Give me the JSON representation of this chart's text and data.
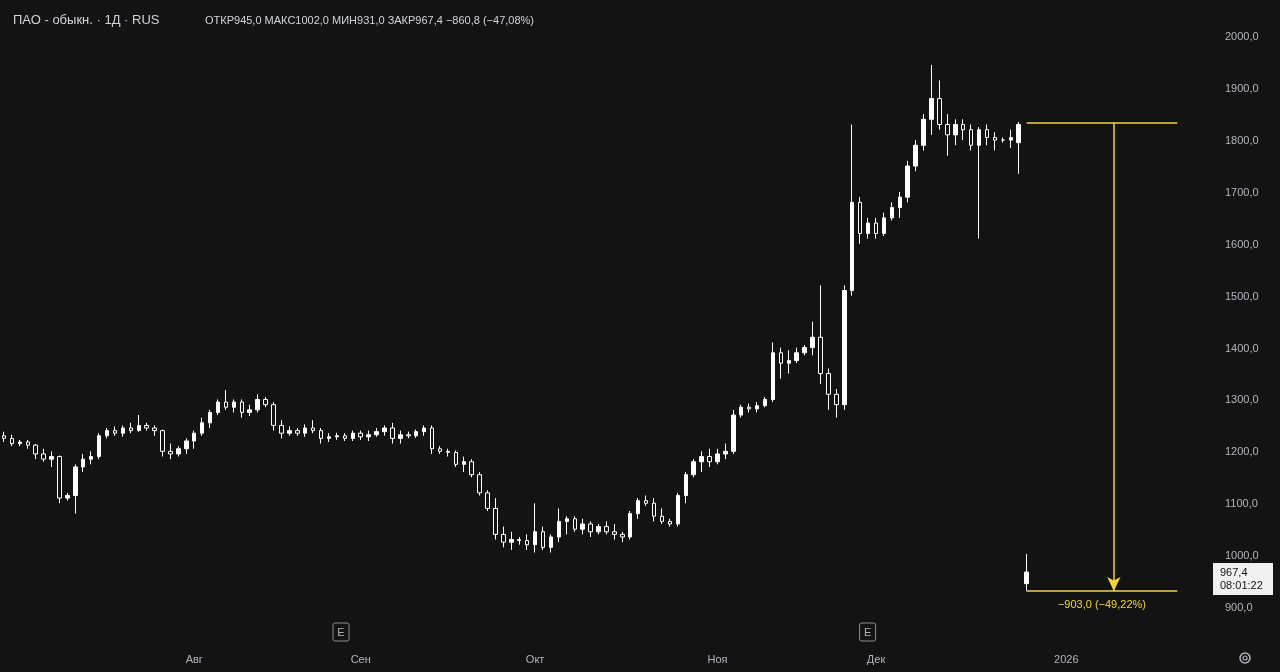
{
  "chart_data": {
    "type": "candlestick",
    "title": "ПАО - обыкн. · 1Д · RUS",
    "subtitle": "ОТКР945,0 МАКС1002,0 МИН931,0 ЗАКР967,4 −860,8 (−47,08%)",
    "color": "#ffffff",
    "categories": [
      null,
      null,
      null,
      null,
      null,
      null,
      null,
      null,
      null,
      null,
      null,
      null,
      null,
      null,
      null,
      null,
      null,
      null,
      null,
      null,
      null,
      null,
      null,
      null,
      "Авг",
      null,
      null,
      null,
      null,
      null,
      null,
      null,
      null,
      null,
      null,
      null,
      null,
      null,
      null,
      null,
      null,
      null,
      null,
      null,
      null,
      "Сен",
      null,
      null,
      null,
      null,
      null,
      null,
      null,
      null,
      null,
      null,
      null,
      null,
      null,
      null,
      null,
      null,
      null,
      null,
      null,
      null,
      null,
      "Окт",
      null,
      null,
      null,
      null,
      null,
      null,
      null,
      null,
      null,
      null,
      null,
      null,
      null,
      null,
      null,
      null,
      null,
      null,
      null,
      null,
      null,
      null,
      "Ноя",
      null,
      null,
      null,
      null,
      null,
      null,
      null,
      null,
      null,
      null,
      null,
      null,
      null,
      null,
      null,
      null,
      null,
      null,
      null,
      "Дек",
      null,
      null,
      null,
      null,
      null,
      null,
      null,
      null,
      null,
      null,
      null,
      null,
      null,
      null,
      null,
      null,
      null,
      null,
      null,
      null,
      null,
      null,
      null,
      "2026",
      null,
      null,
      null,
      null,
      null,
      null,
      null,
      null,
      null,
      null,
      null,
      null,
      null,
      null,
      null,
      null,
      null
    ],
    "ohlc": [
      [
        1230,
        1238,
        1218,
        1225
      ],
      [
        1225,
        1232,
        1210,
        1215
      ],
      [
        1215,
        1222,
        1210,
        1218
      ],
      [
        1218,
        1222,
        1205,
        1212
      ],
      [
        1212,
        1214,
        1185,
        1195
      ],
      [
        1195,
        1205,
        1180,
        1185
      ],
      [
        1185,
        1200,
        1170,
        1190
      ],
      [
        1190,
        1192,
        1100,
        1110
      ],
      [
        1110,
        1120,
        1105,
        1115
      ],
      [
        1115,
        1175,
        1080,
        1170
      ],
      [
        1170,
        1195,
        1160,
        1185
      ],
      [
        1185,
        1200,
        1175,
        1190
      ],
      [
        1190,
        1235,
        1185,
        1230
      ],
      [
        1230,
        1245,
        1225,
        1240
      ],
      [
        1240,
        1248,
        1230,
        1235
      ],
      [
        1235,
        1250,
        1228,
        1245
      ],
      [
        1245,
        1255,
        1235,
        1240
      ],
      [
        1240,
        1270,
        1238,
        1250
      ],
      [
        1250,
        1255,
        1240,
        1245
      ],
      [
        1245,
        1250,
        1230,
        1240
      ],
      [
        1240,
        1242,
        1190,
        1200
      ],
      [
        1200,
        1215,
        1185,
        1195
      ],
      [
        1195,
        1210,
        1190,
        1205
      ],
      [
        1205,
        1225,
        1195,
        1220
      ],
      [
        1220,
        1240,
        1205,
        1235
      ],
      [
        1235,
        1265,
        1230,
        1255
      ],
      [
        1255,
        1280,
        1245,
        1275
      ],
      [
        1275,
        1300,
        1270,
        1295
      ],
      [
        1295,
        1318,
        1280,
        1285
      ],
      [
        1285,
        1300,
        1275,
        1295
      ],
      [
        1295,
        1300,
        1265,
        1275
      ],
      [
        1275,
        1290,
        1268,
        1280
      ],
      [
        1280,
        1310,
        1275,
        1300
      ],
      [
        1300,
        1305,
        1285,
        1290
      ],
      [
        1290,
        1295,
        1240,
        1250
      ],
      [
        1250,
        1260,
        1225,
        1235
      ],
      [
        1235,
        1248,
        1230,
        1240
      ],
      [
        1240,
        1245,
        1230,
        1235
      ],
      [
        1235,
        1252,
        1228,
        1245
      ],
      [
        1245,
        1260,
        1235,
        1240
      ],
      [
        1240,
        1245,
        1215,
        1225
      ],
      [
        1225,
        1235,
        1218,
        1228
      ],
      [
        1228,
        1236,
        1222,
        1230
      ],
      [
        1230,
        1235,
        1220,
        1225
      ],
      [
        1225,
        1240,
        1220,
        1235
      ],
      [
        1235,
        1240,
        1222,
        1228
      ],
      [
        1228,
        1240,
        1220,
        1232
      ],
      [
        1232,
        1245,
        1228,
        1238
      ],
      [
        1238,
        1250,
        1230,
        1245
      ],
      [
        1245,
        1255,
        1215,
        1225
      ],
      [
        1225,
        1240,
        1215,
        1232
      ],
      [
        1232,
        1238,
        1225,
        1230
      ],
      [
        1230,
        1242,
        1226,
        1238
      ],
      [
        1238,
        1250,
        1230,
        1245
      ],
      [
        1245,
        1250,
        1195,
        1205
      ],
      [
        1205,
        1210,
        1195,
        1200
      ],
      [
        1200,
        1205,
        1190,
        1198
      ],
      [
        1198,
        1202,
        1170,
        1175
      ],
      [
        1175,
        1190,
        1160,
        1180
      ],
      [
        1180,
        1185,
        1150,
        1155
      ],
      [
        1155,
        1160,
        1115,
        1120
      ],
      [
        1120,
        1125,
        1085,
        1090
      ],
      [
        1090,
        1110,
        1030,
        1040
      ],
      [
        1040,
        1055,
        1015,
        1025
      ],
      [
        1025,
        1045,
        1010,
        1030
      ],
      [
        1030,
        1035,
        1020,
        1028
      ],
      [
        1028,
        1040,
        1010,
        1020
      ],
      [
        1020,
        1100,
        1005,
        1045
      ],
      [
        1045,
        1055,
        1010,
        1015
      ],
      [
        1015,
        1040,
        1005,
        1035
      ],
      [
        1035,
        1090,
        1025,
        1065
      ],
      [
        1065,
        1075,
        1040,
        1070
      ],
      [
        1070,
        1075,
        1045,
        1050
      ],
      [
        1050,
        1070,
        1040,
        1060
      ],
      [
        1060,
        1065,
        1035,
        1045
      ],
      [
        1045,
        1060,
        1040,
        1055
      ],
      [
        1055,
        1065,
        1040,
        1045
      ],
      [
        1045,
        1060,
        1030,
        1040
      ],
      [
        1040,
        1045,
        1025,
        1035
      ],
      [
        1035,
        1085,
        1030,
        1080
      ],
      [
        1080,
        1110,
        1070,
        1105
      ],
      [
        1105,
        1115,
        1095,
        1100
      ],
      [
        1100,
        1110,
        1065,
        1075
      ],
      [
        1075,
        1090,
        1060,
        1065
      ],
      [
        1065,
        1070,
        1055,
        1060
      ],
      [
        1060,
        1120,
        1055,
        1115
      ],
      [
        1115,
        1160,
        1100,
        1155
      ],
      [
        1155,
        1185,
        1150,
        1180
      ],
      [
        1180,
        1200,
        1160,
        1190
      ],
      [
        1190,
        1205,
        1170,
        1180
      ],
      [
        1180,
        1205,
        1175,
        1195
      ],
      [
        1195,
        1215,
        1185,
        1200
      ],
      [
        1200,
        1280,
        1195,
        1270
      ],
      [
        1270,
        1290,
        1265,
        1285
      ],
      [
        1285,
        1292,
        1275,
        1282
      ],
      [
        1282,
        1295,
        1275,
        1288
      ],
      [
        1288,
        1305,
        1285,
        1300
      ],
      [
        1300,
        1410,
        1295,
        1390
      ],
      [
        1390,
        1400,
        1340,
        1370
      ],
      [
        1370,
        1395,
        1350,
        1375
      ],
      [
        1375,
        1400,
        1370,
        1390
      ],
      [
        1390,
        1405,
        1385,
        1400
      ],
      [
        1400,
        1450,
        1385,
        1420
      ],
      [
        1420,
        1520,
        1330,
        1350
      ],
      [
        1350,
        1360,
        1280,
        1310
      ],
      [
        1310,
        1320,
        1265,
        1290
      ],
      [
        1290,
        1520,
        1280,
        1510
      ],
      [
        1510,
        1830,
        1500,
        1680
      ],
      [
        1680,
        1690,
        1600,
        1620
      ],
      [
        1620,
        1650,
        1610,
        1640
      ],
      [
        1640,
        1650,
        1610,
        1620
      ],
      [
        1620,
        1660,
        1615,
        1650
      ],
      [
        1650,
        1680,
        1645,
        1670
      ],
      [
        1670,
        1700,
        1650,
        1690
      ],
      [
        1690,
        1760,
        1680,
        1750
      ],
      [
        1750,
        1800,
        1740,
        1790
      ],
      [
        1790,
        1850,
        1780,
        1840
      ],
      [
        1840,
        1945,
        1810,
        1880
      ],
      [
        1880,
        1915,
        1820,
        1830
      ],
      [
        1830,
        1850,
        1770,
        1810
      ],
      [
        1810,
        1840,
        1790,
        1830
      ],
      [
        1830,
        1840,
        1800,
        1820
      ],
      [
        1820,
        1830,
        1780,
        1790
      ],
      [
        1790,
        1825,
        1610,
        1820
      ],
      [
        1820,
        1830,
        1790,
        1805
      ],
      [
        1805,
        1815,
        1780,
        1800
      ],
      [
        1800,
        1805,
        1795,
        1800
      ],
      [
        1800,
        1820,
        1785,
        1805
      ],
      [
        1795,
        1835,
        1735,
        1830
      ],
      [
        945,
        1002,
        931,
        967.4
      ],
      null,
      null,
      null,
      null,
      null,
      null,
      null,
      null,
      null,
      null,
      null,
      null,
      null,
      null,
      null,
      null,
      null,
      null,
      null,
      null,
      null,
      null
    ],
    "ylim": [
      900,
      2070
    ],
    "yticks": [
      {
        "value": 900,
        "label": "900,0"
      },
      {
        "value": 1000,
        "label": "1000,0"
      },
      {
        "value": 1100,
        "label": "1100,0"
      },
      {
        "value": 1200,
        "label": "1200,0"
      },
      {
        "value": 1300,
        "label": "1300,0"
      },
      {
        "value": 1400,
        "label": "1400,0"
      },
      {
        "value": 1500,
        "label": "1500,0"
      },
      {
        "value": 1600,
        "label": "1600,0"
      },
      {
        "value": 1700,
        "label": "1700,0"
      },
      {
        "value": 1800,
        "label": "1800,0"
      },
      {
        "value": 1900,
        "label": "1900,0"
      },
      {
        "value": 2000,
        "label": "2000,0"
      }
    ],
    "ref_lines": [
      {
        "axis": "y",
        "value": 1834,
        "color": "#f5d33f"
      },
      {
        "axis": "y",
        "value": 931,
        "color": "#f5d33f",
        "label": "−903,0 (−49,22%)"
      }
    ],
    "annotations": [
      "967,4",
      "08:01:22",
      "E",
      "E"
    ],
    "grid": false
  }
}
